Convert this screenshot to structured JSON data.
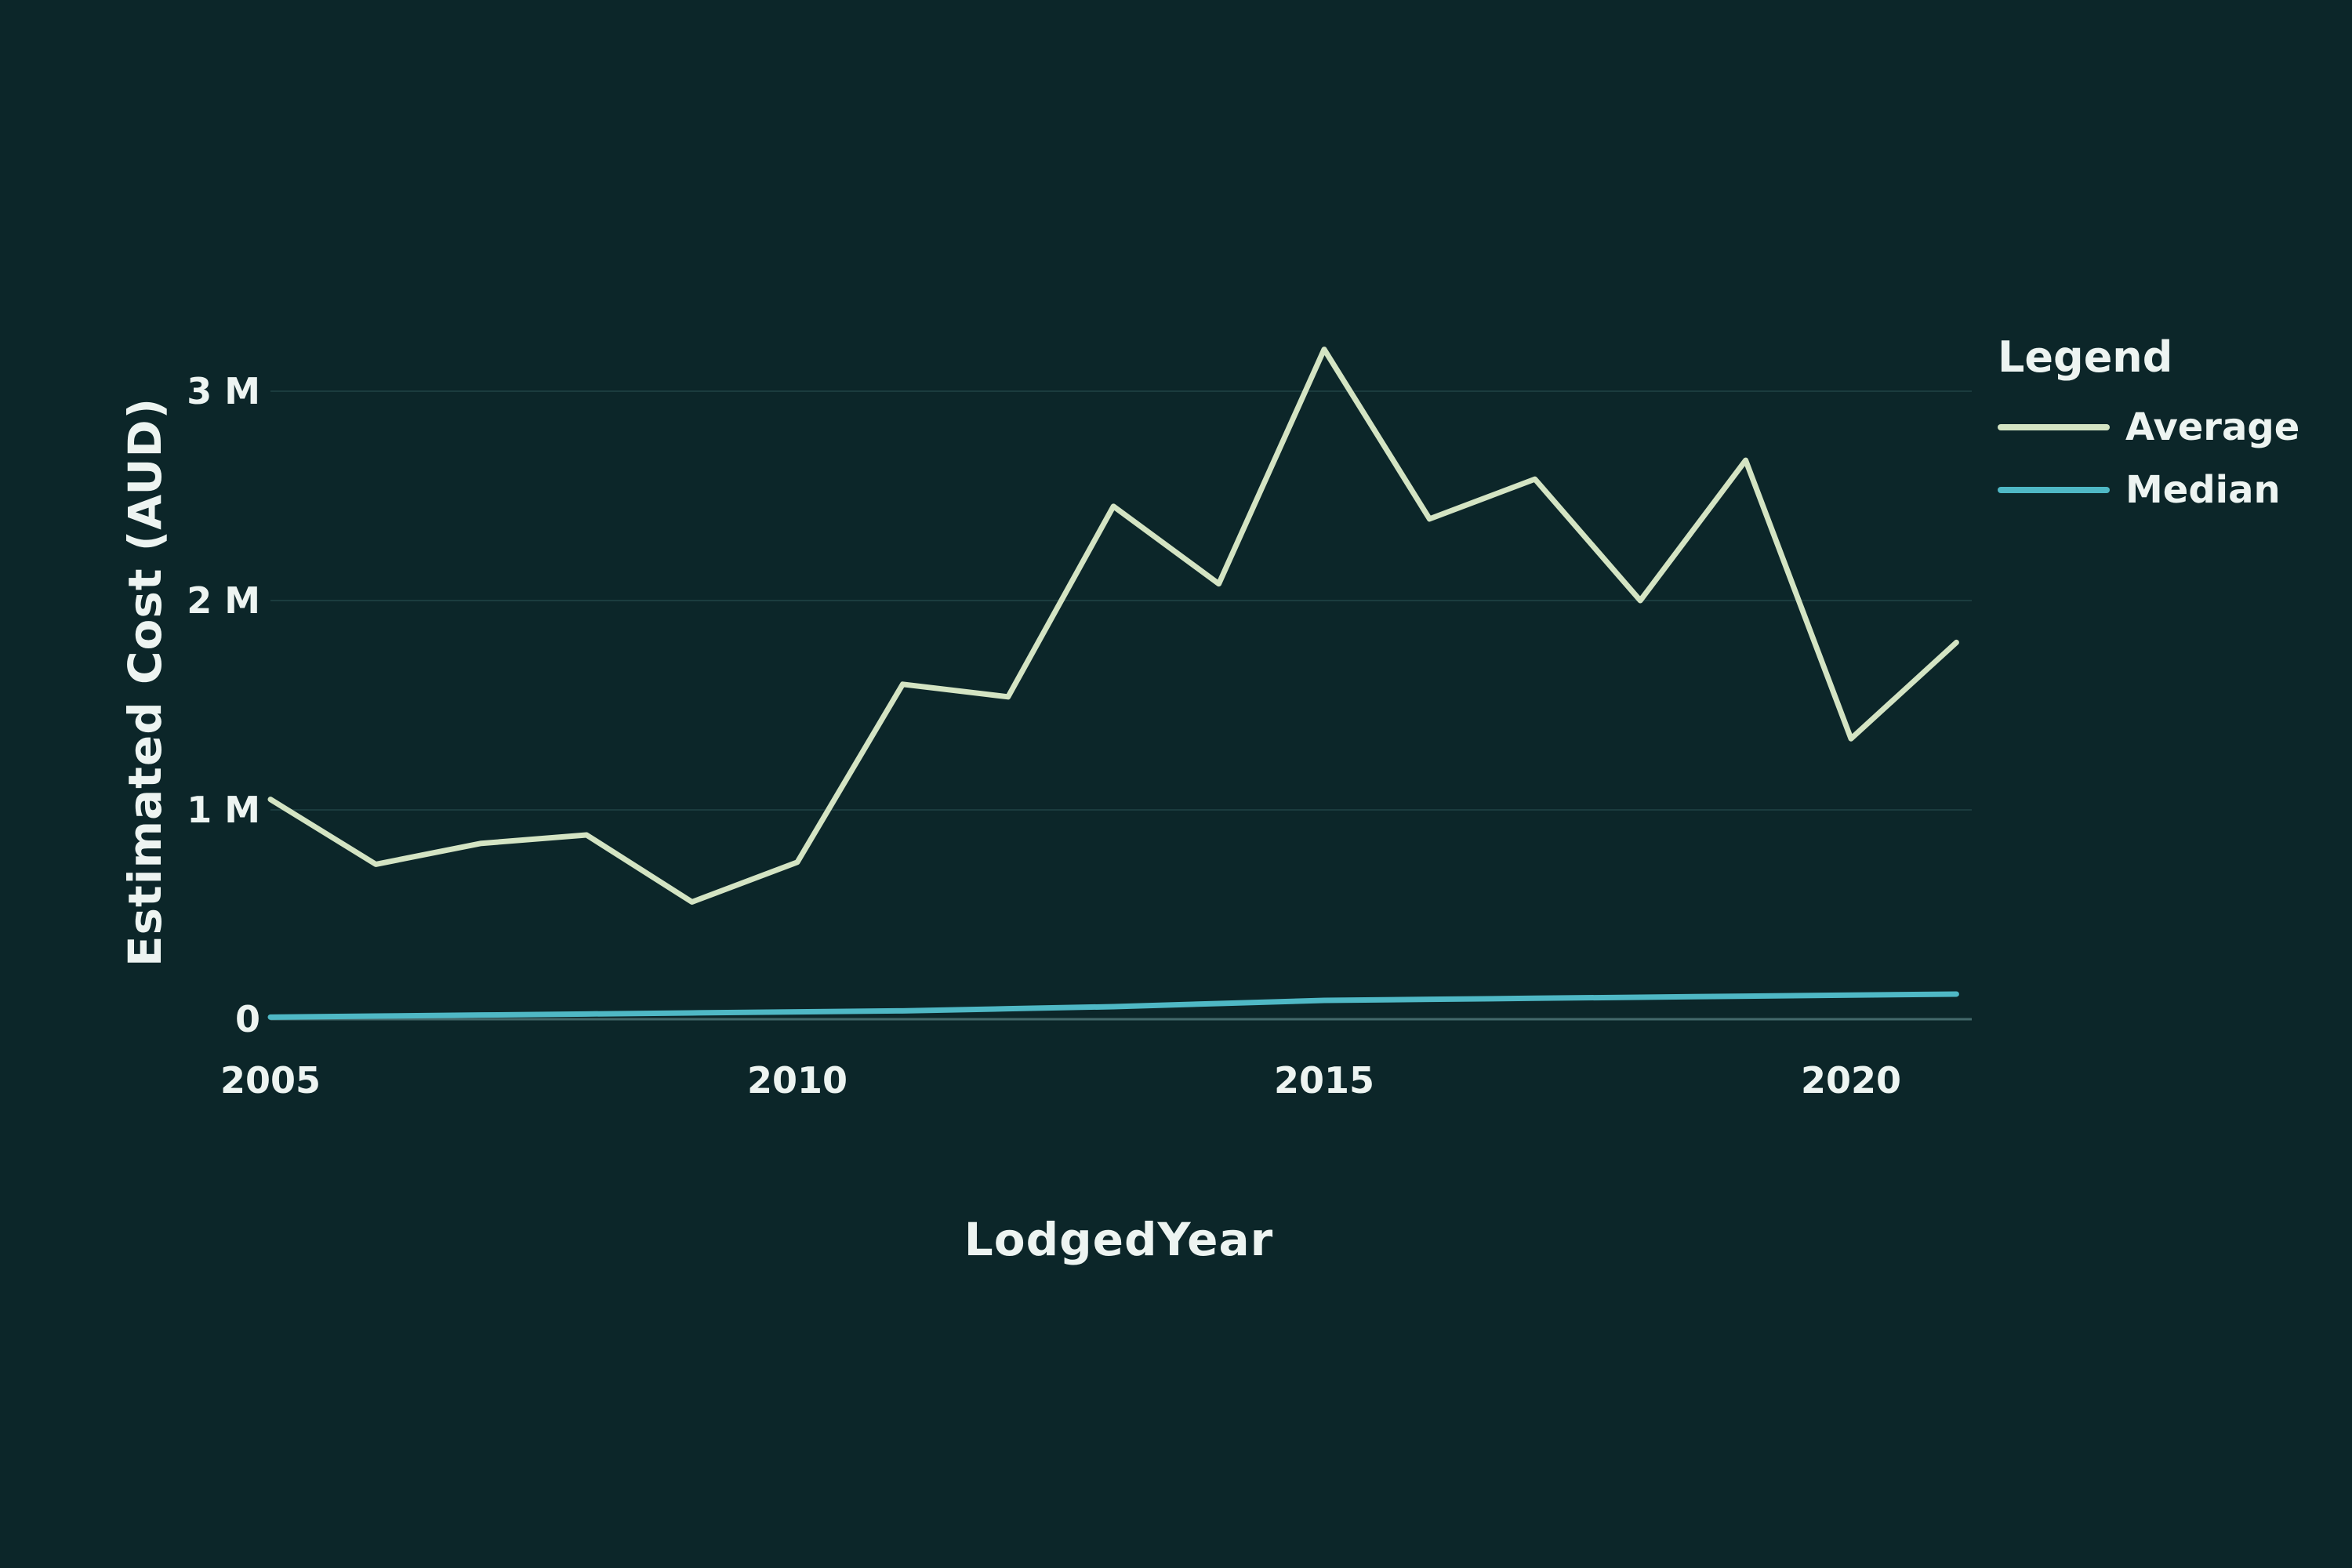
{
  "chart_data": {
    "type": "line",
    "title": "",
    "xlabel": "LodgedYear",
    "ylabel": "Estimated Cost (AUD)",
    "x": [
      2005,
      2006,
      2007,
      2008,
      2009,
      2010,
      2011,
      2012,
      2013,
      2014,
      2015,
      2016,
      2017,
      2018,
      2019,
      2020,
      2021
    ],
    "series": [
      {
        "name": "Average",
        "color": "#d4e4c3",
        "values": [
          1.05,
          0.74,
          0.84,
          0.88,
          0.56,
          0.75,
          1.6,
          1.54,
          2.45,
          2.08,
          3.2,
          2.39,
          2.58,
          2.0,
          2.67,
          1.34,
          1.8
        ]
      },
      {
        "name": "Median",
        "color": "#4fb8c5",
        "values": [
          0.01,
          0.015,
          0.02,
          0.025,
          0.03,
          0.035,
          0.04,
          0.05,
          0.06,
          0.075,
          0.09,
          0.095,
          0.1,
          0.105,
          0.11,
          0.115,
          0.12
        ]
      }
    ],
    "units": "millions AUD",
    "y_ticks": [
      {
        "value": 0,
        "label": "0"
      },
      {
        "value": 1,
        "label": "1 M"
      },
      {
        "value": 2,
        "label": "2 M"
      },
      {
        "value": 3,
        "label": "3 M"
      }
    ],
    "x_ticks": [
      {
        "value": 2005,
        "label": "2005"
      },
      {
        "value": 2010,
        "label": "2010"
      },
      {
        "value": 2015,
        "label": "2015"
      },
      {
        "value": 2020,
        "label": "2020"
      }
    ],
    "xlim": [
      2005,
      2021.15
    ],
    "ylim": [
      -0.05,
      3.3
    ],
    "grid": "horizontal",
    "legend": {
      "title": "Legend",
      "position": "right",
      "entries": [
        "Average",
        "Median"
      ]
    }
  },
  "colors": {
    "background": "#0c2629",
    "grid": "#1b3c3e",
    "zero_line": "#44696b",
    "text": "#edf4f1"
  }
}
